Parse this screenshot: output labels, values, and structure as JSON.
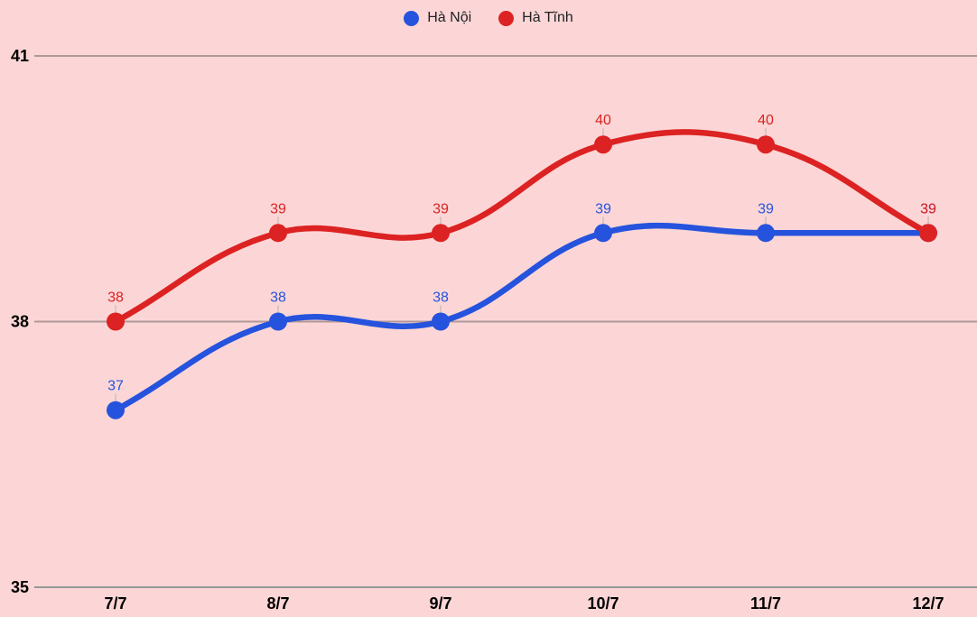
{
  "chart_data": {
    "type": "line",
    "x_labels": [
      "7/7",
      "8/7",
      "9/7",
      "10/7",
      "11/7",
      "12/7"
    ],
    "series": [
      {
        "name": "Hà Nội",
        "color": "#2653dd",
        "values": [
          37,
          38,
          38,
          39,
          39,
          39
        ]
      },
      {
        "name": "Hà Tĩnh",
        "color": "#dc2222",
        "values": [
          38,
          39,
          39,
          40,
          40,
          39
        ]
      }
    ],
    "ylim": [
      35,
      41
    ],
    "yticks": [
      35,
      38,
      41
    ],
    "grid": true,
    "legend_position": "top",
    "point_labels": true,
    "background_color": "#fcd6d6",
    "gridline_color": "#b09898",
    "axis_line_color": "#979797",
    "tick_label_color": "#000000",
    "connector_color": "#cfc0c0",
    "smoothing": 0.4
  }
}
